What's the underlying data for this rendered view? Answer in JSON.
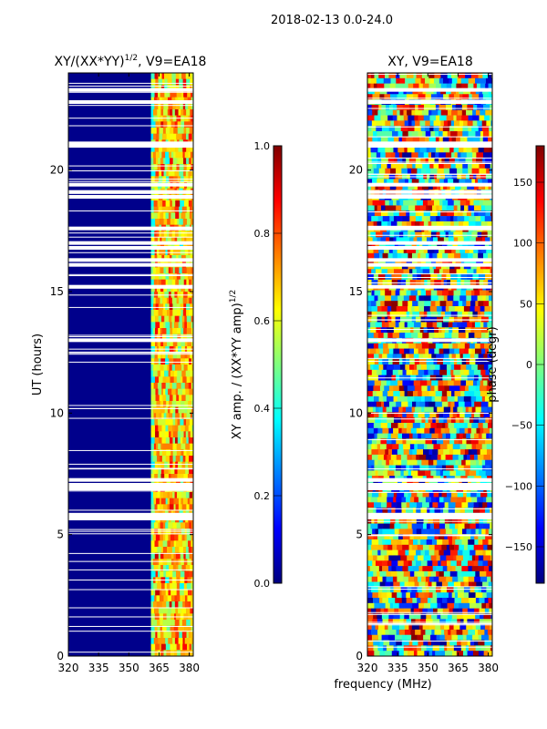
{
  "suptitle": "2018-02-13 0.0-24.0",
  "xlabel_shared": "frequency (MHz)",
  "colors": {
    "jet_stops": [
      "#00007f",
      "#0000ff",
      "#007fff",
      "#00ffff",
      "#7fff7f",
      "#ffff00",
      "#ff7f00",
      "#ff0000",
      "#7f0000"
    ],
    "amp_background": "#00008b",
    "gap": "#ffffff"
  },
  "chart_data": [
    {
      "type": "heatmap",
      "title": "XY/(XX*YY)",
      "title_power": "1/2",
      "title_suffix": ", V9=EA18",
      "xlabel": "",
      "ylabel": "UT (hours)",
      "xlim": [
        320,
        382
      ],
      "ylim": [
        0,
        24
      ],
      "xticks": [
        320,
        335,
        350,
        365,
        380
      ],
      "yticks": [
        0,
        5,
        10,
        15,
        20
      ],
      "active_freq_range": [
        361,
        382
      ],
      "stripe_freqs": [
        363,
        366,
        370,
        373,
        377,
        380
      ],
      "colorbar": {
        "label": "XY amp. / (XX*YY amp)",
        "label_power": "1/2",
        "range": [
          0.0,
          1.0
        ],
        "ticks": [
          "0.0",
          "0.2",
          "0.4",
          "0.6",
          "0.8",
          "1.0"
        ]
      }
    },
    {
      "type": "heatmap",
      "title": "XY, V9=EA18",
      "xlabel": "",
      "ylabel": "",
      "xlim": [
        320,
        382
      ],
      "ylim": [
        0,
        24
      ],
      "xticks": [
        320,
        335,
        350,
        365,
        380
      ],
      "yticks": [
        0,
        5,
        10,
        15,
        20
      ],
      "colorbar": {
        "label": "phase (degr)",
        "range": [
          -180,
          180
        ],
        "ticks": [
          "−150",
          "−100",
          "−50",
          "0",
          "50",
          "100",
          "150"
        ]
      }
    }
  ],
  "time_gaps_hours": [
    5.7,
    5.82,
    6.9,
    7.05,
    7.25,
    13.0,
    15.2,
    16.1,
    16.3,
    16.8,
    17.0,
    17.6,
    18.9,
    19.1,
    19.4,
    21.0,
    21.1,
    22.8,
    23.3
  ]
}
